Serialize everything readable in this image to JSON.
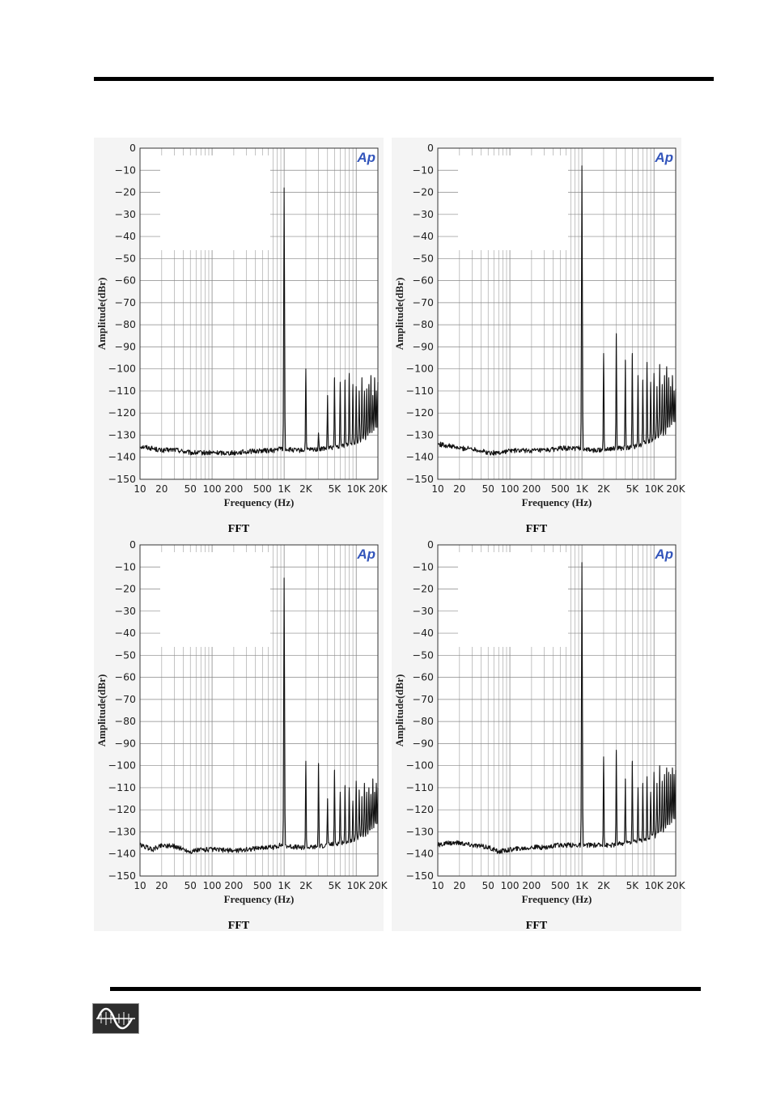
{
  "chart_data": [
    {
      "type": "line",
      "title": "",
      "caption": "FFT",
      "xlabel": "Frequency (Hz)",
      "ylabel": "Amplitude(dBr)",
      "xscale": "log",
      "xlim": [
        10,
        20000
      ],
      "ylim": [
        -150,
        0
      ],
      "xticks": [
        10,
        20,
        50,
        100,
        200,
        500,
        1000,
        2000,
        5000,
        10000,
        20000
      ],
      "xtick_labels": [
        "10",
        "20",
        "50",
        "100",
        "200",
        "500",
        "1K",
        "2K",
        "5K",
        "10K",
        "20K"
      ],
      "yticks": [
        0,
        -10,
        -20,
        -30,
        -40,
        -50,
        -60,
        -70,
        -80,
        -90,
        -100,
        -110,
        -120,
        -130,
        -140,
        -150
      ],
      "grid": true,
      "noise_floor": [
        [
          10,
          -135
        ],
        [
          15,
          -136
        ],
        [
          20,
          -137
        ],
        [
          30,
          -136.5
        ],
        [
          50,
          -138
        ],
        [
          70,
          -138
        ],
        [
          100,
          -138
        ],
        [
          200,
          -138
        ],
        [
          300,
          -137.5
        ],
        [
          500,
          -137
        ],
        [
          700,
          -137
        ],
        [
          900,
          -136
        ],
        [
          1500,
          -137
        ],
        [
          2500,
          -136.5
        ],
        [
          4000,
          -136
        ],
        [
          6000,
          -135
        ],
        [
          8000,
          -134
        ],
        [
          10000,
          -133
        ],
        [
          14000,
          -131
        ],
        [
          20000,
          -128
        ]
      ],
      "peaks": [
        [
          1000,
          -18
        ],
        [
          2000,
          -100
        ],
        [
          3000,
          -129
        ],
        [
          4000,
          -112
        ],
        [
          5000,
          -104
        ],
        [
          6000,
          -106
        ],
        [
          7000,
          -105
        ],
        [
          8000,
          -102
        ],
        [
          9000,
          -107
        ],
        [
          10000,
          -108
        ],
        [
          11000,
          -110
        ],
        [
          12000,
          -104
        ],
        [
          13000,
          -110
        ],
        [
          14000,
          -109
        ],
        [
          15000,
          -107
        ],
        [
          16000,
          -103
        ],
        [
          17000,
          -112
        ],
        [
          18000,
          -104
        ],
        [
          19000,
          -110
        ],
        [
          20000,
          -106
        ]
      ],
      "series": [
        {
          "values_ref": "noise_floor+peaks"
        }
      ],
      "logo": "Ap"
    },
    {
      "type": "line",
      "title": "",
      "caption": "FFT",
      "xlabel": "Frequency (Hz)",
      "ylabel": "Amplitude(dBr)",
      "xscale": "log",
      "xlim": [
        10,
        20000
      ],
      "ylim": [
        -150,
        0
      ],
      "xticks": [
        10,
        20,
        50,
        100,
        200,
        500,
        1000,
        2000,
        5000,
        10000,
        20000
      ],
      "xtick_labels": [
        "10",
        "20",
        "50",
        "100",
        "200",
        "500",
        "1K",
        "2K",
        "5K",
        "10K",
        "20K"
      ],
      "yticks": [
        0,
        -10,
        -20,
        -30,
        -40,
        -50,
        -60,
        -70,
        -80,
        -90,
        -100,
        -110,
        -120,
        -130,
        -140,
        -150
      ],
      "grid": true,
      "noise_floor": [
        [
          10,
          -134
        ],
        [
          15,
          -135
        ],
        [
          20,
          -136
        ],
        [
          30,
          -136
        ],
        [
          50,
          -138
        ],
        [
          70,
          -138
        ],
        [
          100,
          -137
        ],
        [
          200,
          -137
        ],
        [
          300,
          -137
        ],
        [
          500,
          -136
        ],
        [
          700,
          -136
        ],
        [
          900,
          -136
        ],
        [
          1500,
          -137
        ],
        [
          2500,
          -136
        ],
        [
          4000,
          -136
        ],
        [
          6000,
          -135
        ],
        [
          8000,
          -133
        ],
        [
          10000,
          -132
        ],
        [
          14000,
          -129
        ],
        [
          20000,
          -125
        ]
      ],
      "peaks": [
        [
          1000,
          -8
        ],
        [
          2000,
          -93
        ],
        [
          3000,
          -84
        ],
        [
          4000,
          -96
        ],
        [
          5000,
          -93
        ],
        [
          6000,
          -103
        ],
        [
          7000,
          -105
        ],
        [
          8000,
          -97
        ],
        [
          9000,
          -106
        ],
        [
          10000,
          -102
        ],
        [
          11000,
          -108
        ],
        [
          12000,
          -98
        ],
        [
          13000,
          -107
        ],
        [
          14000,
          -103
        ],
        [
          15000,
          -99
        ],
        [
          16000,
          -104
        ],
        [
          17000,
          -108
        ],
        [
          18000,
          -103
        ],
        [
          19000,
          -110
        ],
        [
          20000,
          -109
        ]
      ],
      "logo": "Ap"
    },
    {
      "type": "line",
      "title": "",
      "caption": "FFT",
      "xlabel": "Frequency (Hz)",
      "ylabel": "Amplitude(dBr)",
      "xscale": "log",
      "xlim": [
        10,
        20000
      ],
      "ylim": [
        -150,
        0
      ],
      "xticks": [
        10,
        20,
        50,
        100,
        200,
        500,
        1000,
        2000,
        5000,
        10000,
        20000
      ],
      "xtick_labels": [
        "10",
        "20",
        "50",
        "100",
        "200",
        "500",
        "1K",
        "2K",
        "5K",
        "10K",
        "20K"
      ],
      "yticks": [
        0,
        -10,
        -20,
        -30,
        -40,
        -50,
        -60,
        -70,
        -80,
        -90,
        -100,
        -110,
        -120,
        -130,
        -140,
        -150
      ],
      "grid": true,
      "noise_floor": [
        [
          10,
          -136
        ],
        [
          15,
          -138
        ],
        [
          20,
          -136
        ],
        [
          30,
          -136.5
        ],
        [
          50,
          -139
        ],
        [
          70,
          -138
        ],
        [
          100,
          -138
        ],
        [
          200,
          -138.5
        ],
        [
          300,
          -138
        ],
        [
          500,
          -137
        ],
        [
          700,
          -137
        ],
        [
          900,
          -136
        ],
        [
          1500,
          -137
        ],
        [
          2500,
          -137
        ],
        [
          4000,
          -136
        ],
        [
          6000,
          -135
        ],
        [
          8000,
          -134
        ],
        [
          10000,
          -133
        ],
        [
          14000,
          -131
        ],
        [
          20000,
          -128
        ]
      ],
      "peaks": [
        [
          1000,
          -15
        ],
        [
          2000,
          -98
        ],
        [
          3000,
          -99
        ],
        [
          4000,
          -115
        ],
        [
          5000,
          -102
        ],
        [
          6000,
          -112
        ],
        [
          7000,
          -109
        ],
        [
          8000,
          -110
        ],
        [
          9000,
          -116
        ],
        [
          10000,
          -107
        ],
        [
          11000,
          -111
        ],
        [
          12000,
          -114
        ],
        [
          13000,
          -108
        ],
        [
          14000,
          -112
        ],
        [
          15000,
          -110
        ],
        [
          16000,
          -113
        ],
        [
          17000,
          -106
        ],
        [
          18000,
          -112
        ],
        [
          19000,
          -108
        ],
        [
          20000,
          -110
        ]
      ],
      "logo": "Ap"
    },
    {
      "type": "line",
      "title": "",
      "caption": "FFT",
      "xlabel": "Frequency (Hz)",
      "ylabel": "Amplitude(dBr)",
      "xscale": "log",
      "xlim": [
        10,
        20000
      ],
      "ylim": [
        -150,
        0
      ],
      "xticks": [
        10,
        20,
        50,
        100,
        200,
        500,
        1000,
        2000,
        5000,
        10000,
        20000
      ],
      "xtick_labels": [
        "10",
        "20",
        "50",
        "100",
        "200",
        "500",
        "1K",
        "2K",
        "5K",
        "10K",
        "20K"
      ],
      "yticks": [
        0,
        -10,
        -20,
        -30,
        -40,
        -50,
        -60,
        -70,
        -80,
        -90,
        -100,
        -110,
        -120,
        -130,
        -140,
        -150
      ],
      "grid": true,
      "noise_floor": [
        [
          10,
          -136
        ],
        [
          15,
          -135
        ],
        [
          20,
          -135
        ],
        [
          30,
          -136
        ],
        [
          50,
          -137
        ],
        [
          70,
          -139
        ],
        [
          100,
          -138
        ],
        [
          200,
          -137
        ],
        [
          300,
          -137
        ],
        [
          500,
          -136
        ],
        [
          700,
          -136
        ],
        [
          900,
          -136
        ],
        [
          1500,
          -136
        ],
        [
          2500,
          -136
        ],
        [
          4000,
          -135
        ],
        [
          6000,
          -134
        ],
        [
          8000,
          -133
        ],
        [
          10000,
          -132
        ],
        [
          14000,
          -129
        ],
        [
          20000,
          -126
        ]
      ],
      "peaks": [
        [
          1000,
          -8
        ],
        [
          2000,
          -96
        ],
        [
          3000,
          -93
        ],
        [
          4000,
          -106
        ],
        [
          5000,
          -98
        ],
        [
          6000,
          -110
        ],
        [
          7000,
          -108
        ],
        [
          8000,
          -105
        ],
        [
          9000,
          -112
        ],
        [
          10000,
          -103
        ],
        [
          11000,
          -108
        ],
        [
          12000,
          -100
        ],
        [
          13000,
          -107
        ],
        [
          14000,
          -104
        ],
        [
          15000,
          -101
        ],
        [
          16000,
          -103
        ],
        [
          17000,
          -104
        ],
        [
          18000,
          -101
        ],
        [
          19000,
          -104
        ],
        [
          20000,
          -102
        ]
      ],
      "logo": "Ap"
    }
  ]
}
